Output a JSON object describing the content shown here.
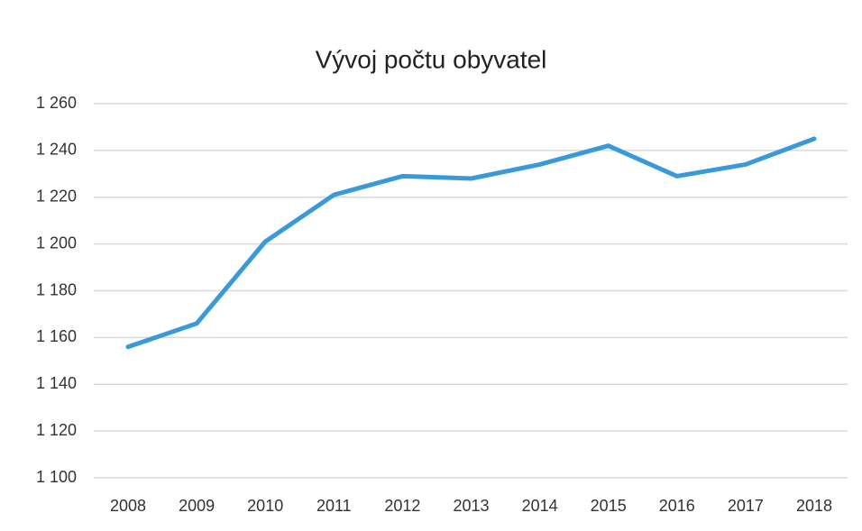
{
  "chart_data": {
    "type": "line",
    "title": "Vývoj počtu obyvatel",
    "categories": [
      "2008",
      "2009",
      "2010",
      "2011",
      "2012",
      "2013",
      "2014",
      "2015",
      "2016",
      "2017",
      "2018"
    ],
    "values": [
      1156,
      1166,
      1201,
      1221,
      1229,
      1228,
      1234,
      1242,
      1229,
      1234,
      1245
    ],
    "color": "#3a9ad9",
    "ylim": [
      1100,
      1260
    ],
    "yticks": [
      {
        "value": 1100,
        "label": "1 100"
      },
      {
        "value": 1120,
        "label": "1 120"
      },
      {
        "value": 1140,
        "label": "1 140"
      },
      {
        "value": 1160,
        "label": "1 160"
      },
      {
        "value": 1180,
        "label": "1 180"
      },
      {
        "value": 1200,
        "label": "1 200"
      },
      {
        "value": 1220,
        "label": "1 220"
      },
      {
        "value": 1240,
        "label": "1 240"
      },
      {
        "value": 1260,
        "label": "1 260"
      }
    ],
    "grid": true
  }
}
